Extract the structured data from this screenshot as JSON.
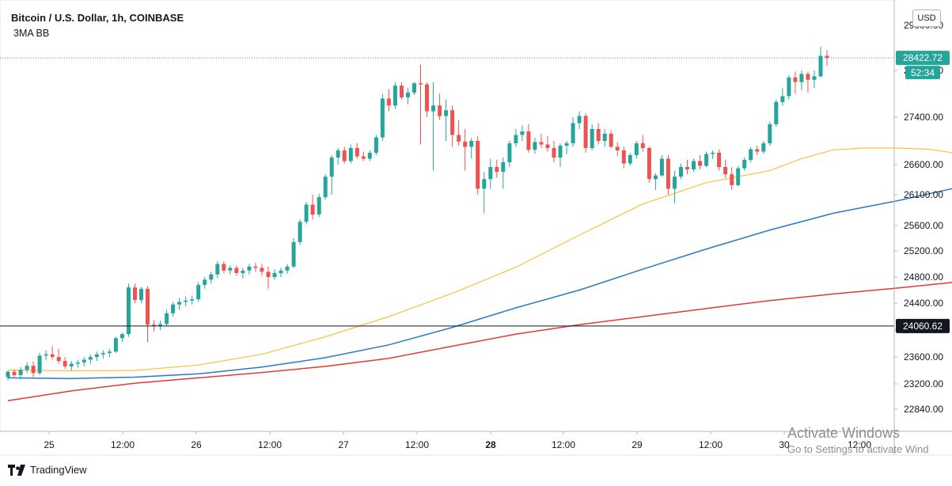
{
  "header": {
    "title": "Bitcoin / U.S. Dollar, 1h, COINBASE",
    "indicator": "3MA BB"
  },
  "currency_label": "USD",
  "branding": {
    "name": "TradingView"
  },
  "watermark": {
    "line1": "Activate Windows",
    "line2": "Go to Settings to activate Wind"
  },
  "colors": {
    "up": "#26a69a",
    "down": "#ef5350",
    "ma_fast": "#f7c140",
    "ma_mid": "#2979c8",
    "ma_slow": "#e53935",
    "grid": "#e0e3eb",
    "axis_text": "#131722"
  },
  "chart_data": {
    "type": "candlestick",
    "symbol": "Bitcoin / U.S. Dollar",
    "interval": "1h",
    "exchange": "COINBASE",
    "y_axis": {
      "ticks": [
        "28200.00",
        "27400.00",
        "26600.00",
        "26100.00",
        "25600.00",
        "25200.00",
        "24800.00",
        "24400.00",
        "24000.00",
        "23600.00",
        "23200.00",
        "22840.00"
      ],
      "partially_hidden_ticks": [
        "29000.00"
      ]
    },
    "x_axis": {
      "labels": [
        {
          "label": "25",
          "bold": false
        },
        {
          "label": "12:00",
          "bold": false
        },
        {
          "label": "26",
          "bold": false
        },
        {
          "label": "12:00",
          "bold": false
        },
        {
          "label": "27",
          "bold": false
        },
        {
          "label": "12:00",
          "bold": false
        },
        {
          "label": "28",
          "bold": true
        },
        {
          "label": "12:00",
          "bold": false
        },
        {
          "label": "29",
          "bold": false
        },
        {
          "label": "12:00",
          "bold": false
        },
        {
          "label": "30",
          "bold": false
        },
        {
          "label": "12:00",
          "bold": false
        }
      ]
    },
    "price_labels": {
      "last_price": "28422.72",
      "countdown": "52:34",
      "horizontal_line": "24060.62"
    },
    "moving_averages": [
      {
        "key": "ma_fast",
        "points": [
          [
            0,
            23405
          ],
          [
            10,
            23395
          ],
          [
            20,
            23400
          ],
          [
            30,
            23480
          ],
          [
            40,
            23640
          ],
          [
            50,
            23900
          ],
          [
            60,
            24200
          ],
          [
            70,
            24550
          ],
          [
            80,
            24950
          ],
          [
            90,
            25450
          ],
          [
            100,
            25950
          ],
          [
            110,
            26300
          ],
          [
            120,
            26500
          ],
          [
            125,
            26700
          ],
          [
            130,
            26850
          ],
          [
            135,
            26880
          ],
          [
            140,
            26880
          ],
          [
            145,
            26860
          ],
          [
            150,
            26780
          ],
          [
            155,
            26780
          ],
          [
            160,
            26820
          ],
          [
            170,
            26950
          ]
        ]
      },
      {
        "key": "ma_mid",
        "points": [
          [
            0,
            23290
          ],
          [
            10,
            23280
          ],
          [
            20,
            23300
          ],
          [
            30,
            23350
          ],
          [
            40,
            23450
          ],
          [
            50,
            23590
          ],
          [
            60,
            23780
          ],
          [
            70,
            24040
          ],
          [
            80,
            24330
          ],
          [
            90,
            24600
          ],
          [
            100,
            24920
          ],
          [
            110,
            25230
          ],
          [
            120,
            25530
          ],
          [
            130,
            25800
          ],
          [
            140,
            26000
          ],
          [
            150,
            26230
          ],
          [
            160,
            26420
          ],
          [
            170,
            26680
          ]
        ]
      },
      {
        "key": "ma_slow",
        "points": [
          [
            0,
            22960
          ],
          [
            10,
            23100
          ],
          [
            20,
            23210
          ],
          [
            30,
            23290
          ],
          [
            40,
            23370
          ],
          [
            50,
            23460
          ],
          [
            60,
            23580
          ],
          [
            70,
            23760
          ],
          [
            80,
            23940
          ],
          [
            90,
            24080
          ],
          [
            100,
            24200
          ],
          [
            110,
            24320
          ],
          [
            120,
            24440
          ],
          [
            130,
            24540
          ],
          [
            140,
            24630
          ],
          [
            150,
            24730
          ],
          [
            160,
            24880
          ],
          [
            170,
            25120
          ]
        ]
      }
    ],
    "ohlc": [
      [
        23300,
        23400,
        23250,
        23380
      ],
      [
        23380,
        23420,
        23300,
        23330
      ],
      [
        23330,
        23450,
        23270,
        23410
      ],
      [
        23410,
        23520,
        23360,
        23470
      ],
      [
        23470,
        23540,
        23300,
        23360
      ],
      [
        23360,
        23660,
        23330,
        23620
      ],
      [
        23620,
        23700,
        23550,
        23640
      ],
      [
        23640,
        23760,
        23560,
        23600
      ],
      [
        23600,
        23720,
        23500,
        23540
      ],
      [
        23540,
        23600,
        23420,
        23460
      ],
      [
        23460,
        23540,
        23400,
        23500
      ],
      [
        23500,
        23560,
        23440,
        23520
      ],
      [
        23520,
        23600,
        23460,
        23560
      ],
      [
        23560,
        23640,
        23500,
        23600
      ],
      [
        23600,
        23680,
        23540,
        23640
      ],
      [
        23640,
        23700,
        23580,
        23660
      ],
      [
        23660,
        23720,
        23600,
        23680
      ],
      [
        23680,
        23900,
        23660,
        23880
      ],
      [
        23880,
        23960,
        23820,
        23940
      ],
      [
        23940,
        24700,
        23900,
        24640
      ],
      [
        24640,
        24700,
        24400,
        24450
      ],
      [
        24450,
        24650,
        24400,
        24620
      ],
      [
        24620,
        24660,
        23820,
        24080
      ],
      [
        24080,
        24150,
        23980,
        24060
      ],
      [
        24060,
        24140,
        24000,
        24090
      ],
      [
        24090,
        24300,
        24060,
        24250
      ],
      [
        24250,
        24420,
        24200,
        24380
      ],
      [
        24380,
        24480,
        24300,
        24420
      ],
      [
        24420,
        24500,
        24350,
        24440
      ],
      [
        24440,
        24520,
        24380,
        24460
      ],
      [
        24460,
        24720,
        24420,
        24680
      ],
      [
        24680,
        24800,
        24620,
        24760
      ],
      [
        24760,
        24880,
        24700,
        24840
      ],
      [
        24840,
        25040,
        24780,
        25000
      ],
      [
        25000,
        25040,
        24860,
        24900
      ],
      [
        24900,
        24980,
        24840,
        24940
      ],
      [
        24940,
        24980,
        24820,
        24860
      ],
      [
        24860,
        24940,
        24780,
        24900
      ],
      [
        24900,
        25000,
        24840,
        24960
      ],
      [
        24960,
        25020,
        24880,
        24940
      ],
      [
        24940,
        25000,
        24820,
        24880
      ],
      [
        24880,
        24960,
        24620,
        24800
      ],
      [
        24800,
        24920,
        24760,
        24860
      ],
      [
        24860,
        24940,
        24800,
        24900
      ],
      [
        24900,
        25000,
        24850,
        24960
      ],
      [
        24960,
        25400,
        24940,
        25340
      ],
      [
        25340,
        25700,
        25300,
        25660
      ],
      [
        25660,
        25980,
        25620,
        25940
      ],
      [
        25940,
        26100,
        25700,
        25780
      ],
      [
        25780,
        26120,
        25740,
        26060
      ],
      [
        26060,
        26440,
        26020,
        26400
      ],
      [
        26400,
        26760,
        26100,
        26720
      ],
      [
        26720,
        26880,
        26600,
        26840
      ],
      [
        26840,
        26900,
        26620,
        26660
      ],
      [
        26660,
        26940,
        26620,
        26880
      ],
      [
        26880,
        26960,
        26700,
        26740
      ],
      [
        26740,
        26820,
        26660,
        26700
      ],
      [
        26700,
        26840,
        26660,
        26800
      ],
      [
        26800,
        27100,
        26760,
        27060
      ],
      [
        27060,
        27800,
        27000,
        27720
      ],
      [
        27720,
        27880,
        27500,
        27600
      ],
      [
        27600,
        28000,
        27540,
        27940
      ],
      [
        27940,
        28000,
        27700,
        27740
      ],
      [
        27740,
        27900,
        27620,
        27820
      ],
      [
        27820,
        28000,
        27780,
        27980
      ],
      [
        27980,
        28300,
        26940,
        27960
      ],
      [
        27960,
        28000,
        27400,
        27500
      ],
      [
        27500,
        28000,
        26500,
        27600
      ],
      [
        27600,
        27800,
        27350,
        27420
      ],
      [
        27420,
        27700,
        27000,
        27520
      ],
      [
        27520,
        27600,
        26900,
        27100
      ],
      [
        27100,
        27350,
        26920,
        26990
      ],
      [
        26990,
        27200,
        26500,
        26900
      ],
      [
        26900,
        27050,
        26700,
        27000
      ],
      [
        27000,
        27080,
        26100,
        26200
      ],
      [
        26200,
        26480,
        25800,
        26360
      ],
      [
        26360,
        26700,
        26200,
        26560
      ],
      [
        26560,
        26680,
        26380,
        26480
      ],
      [
        26480,
        26720,
        26200,
        26640
      ],
      [
        26640,
        27000,
        26560,
        26960
      ],
      [
        26960,
        27200,
        26900,
        27100
      ],
      [
        27100,
        27260,
        27000,
        27160
      ],
      [
        27160,
        27280,
        26800,
        26850
      ],
      [
        26850,
        27050,
        26780,
        26980
      ],
      [
        26980,
        27120,
        26880,
        26940
      ],
      [
        26940,
        27080,
        26820,
        26880
      ],
      [
        26880,
        27000,
        26640,
        26720
      ],
      [
        26720,
        26960,
        26560,
        26920
      ],
      [
        26920,
        27000,
        26780,
        26960
      ],
      [
        26960,
        27400,
        26900,
        27300
      ],
      [
        27300,
        27500,
        27200,
        27420
      ],
      [
        27420,
        27460,
        26800,
        26880
      ],
      [
        26880,
        27280,
        26840,
        27200
      ],
      [
        27200,
        27300,
        26940,
        27000
      ],
      [
        27000,
        27200,
        26900,
        27120
      ],
      [
        27120,
        27180,
        26880,
        26900
      ],
      [
        26900,
        26980,
        26740,
        26840
      ],
      [
        26840,
        26900,
        26540,
        26620
      ],
      [
        26620,
        26800,
        26580,
        26760
      ],
      [
        26760,
        27000,
        26700,
        26960
      ],
      [
        26960,
        27100,
        26820,
        26880
      ],
      [
        26880,
        26900,
        26300,
        26360
      ],
      [
        26360,
        26460,
        26180,
        26420
      ],
      [
        26420,
        26760,
        26400,
        26700
      ],
      [
        26700,
        26760,
        26100,
        26200
      ],
      [
        26200,
        26500,
        25960,
        26400
      ],
      [
        26400,
        26620,
        26360,
        26560
      ],
      [
        26560,
        26680,
        26440,
        26520
      ],
      [
        26520,
        26700,
        26480,
        26660
      ],
      [
        26660,
        26760,
        26520,
        26580
      ],
      [
        26580,
        26820,
        26560,
        26780
      ],
      [
        26780,
        26840,
        26700,
        26800
      ],
      [
        26800,
        26860,
        26500,
        26560
      ],
      [
        26560,
        26680,
        26380,
        26440
      ],
      [
        26440,
        26560,
        26180,
        26260
      ],
      [
        26260,
        26580,
        26240,
        26540
      ],
      [
        26540,
        26720,
        26500,
        26680
      ],
      [
        26680,
        26900,
        26640,
        26860
      ],
      [
        26860,
        26920,
        26760,
        26820
      ],
      [
        26820,
        27000,
        26780,
        26960
      ],
      [
        26960,
        27320,
        26920,
        27280
      ],
      [
        27280,
        27700,
        27240,
        27660
      ],
      [
        27660,
        27900,
        27600,
        27760
      ],
      [
        27760,
        28120,
        27700,
        28080
      ],
      [
        28080,
        28180,
        27800,
        28000
      ],
      [
        28000,
        28200,
        27860,
        28140
      ],
      [
        28140,
        28180,
        27820,
        28040
      ],
      [
        28040,
        28200,
        27900,
        28100
      ],
      [
        28100,
        28620,
        28080,
        28460
      ],
      [
        28460,
        28560,
        28280,
        28423
      ]
    ]
  }
}
